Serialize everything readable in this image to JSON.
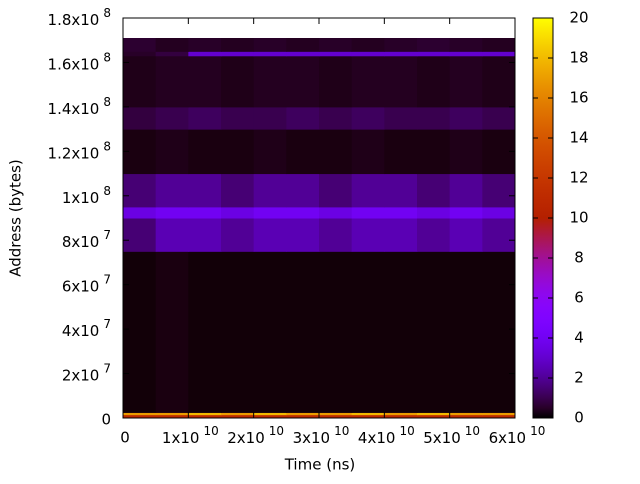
{
  "chart_data": {
    "type": "heatmap",
    "xlabel": "Time (ns)",
    "ylabel": "Address (bytes)",
    "xlim": [
      0,
      60000000000
    ],
    "ylim": [
      0,
      180000000
    ],
    "zlim": [
      0,
      20
    ],
    "xticks": [
      0,
      {
        "value": 10000000000,
        "label": "1x10",
        "exponent": "10"
      },
      {
        "value": 20000000000,
        "label": "2x10",
        "exponent": "10"
      },
      {
        "value": 30000000000,
        "label": "3x10",
        "exponent": "10"
      },
      {
        "value": 40000000000,
        "label": "4x10",
        "exponent": "10"
      },
      {
        "value": 50000000000,
        "label": "5x10",
        "exponent": "10"
      },
      {
        "value": 60000000000,
        "label": "6x10",
        "exponent": "10"
      }
    ],
    "yticks": [
      0,
      {
        "value": 20000000,
        "label": "2x10",
        "exponent": "7"
      },
      {
        "value": 40000000,
        "label": "4x10",
        "exponent": "7"
      },
      {
        "value": 60000000,
        "label": "6x10",
        "exponent": "7"
      },
      {
        "value": 80000000,
        "label": "8x10",
        "exponent": "7"
      },
      {
        "value": 100000000,
        "label": "1x10",
        "exponent": "8"
      },
      {
        "value": 120000000,
        "label": "1.2x10",
        "exponent": "8"
      },
      {
        "value": 140000000,
        "label": "1.4x10",
        "exponent": "8"
      },
      {
        "value": 160000000,
        "label": "1.6x10",
        "exponent": "8"
      },
      {
        "value": 180000000,
        "label": "1.8x10",
        "exponent": "8"
      }
    ],
    "zticks": [
      0,
      2,
      4,
      6,
      8,
      10,
      12,
      14,
      16,
      18,
      20
    ],
    "x_edges": [
      0,
      5000000000,
      10000000000,
      15000000000,
      20000000000,
      25000000000,
      30000000000,
      35000000000,
      40000000000,
      45000000000,
      50000000000,
      55000000000,
      60000000000
    ],
    "y_edges": [
      0,
      1500000,
      2500000,
      75000000,
      90000000,
      95000000,
      110000000,
      130000000,
      140000000,
      163000000,
      165000000,
      171000000
    ],
    "values": [
      [
        11,
        11,
        11,
        11,
        11,
        11,
        11,
        11,
        11,
        11,
        11,
        11
      ],
      [
        17,
        17,
        18,
        17,
        18,
        17,
        17,
        18,
        17,
        18,
        17,
        17
      ],
      [
        0.1,
        0.2,
        0.1,
        0.1,
        0.1,
        0.1,
        0.1,
        0.1,
        0.1,
        0.1,
        0.1,
        0.1
      ],
      [
        1.5,
        2.5,
        2.5,
        2,
        2.5,
        2.5,
        2,
        2.5,
        2.5,
        2,
        2.5,
        2
      ],
      [
        3.5,
        4,
        4,
        3.5,
        4,
        4,
        3.5,
        4,
        4,
        3.5,
        4,
        3.5
      ],
      [
        1.5,
        2,
        2,
        1.5,
        2,
        2,
        1.5,
        2,
        2,
        1.5,
        2,
        1.5
      ],
      [
        0.2,
        0.3,
        0.2,
        0.2,
        0.3,
        0.2,
        0.2,
        0.3,
        0.2,
        0.2,
        0.3,
        0.2
      ],
      [
        0.8,
        1,
        1.2,
        1,
        1,
        1.2,
        1,
        1.2,
        1,
        1,
        1.2,
        1
      ],
      [
        0.3,
        0.4,
        0.4,
        0.3,
        0.4,
        0.4,
        0.3,
        0.4,
        0.4,
        0.3,
        0.4,
        0.3
      ],
      [
        0.5,
        0.8,
        3,
        3,
        3,
        3,
        3,
        3,
        3,
        3,
        3,
        3
      ],
      [
        0.6,
        0.4,
        0.5,
        0.4,
        0.5,
        0.4,
        0.5,
        0.4,
        0.5,
        0.6,
        0.5,
        0.4
      ]
    ],
    "palette": "gnuplot-default"
  }
}
